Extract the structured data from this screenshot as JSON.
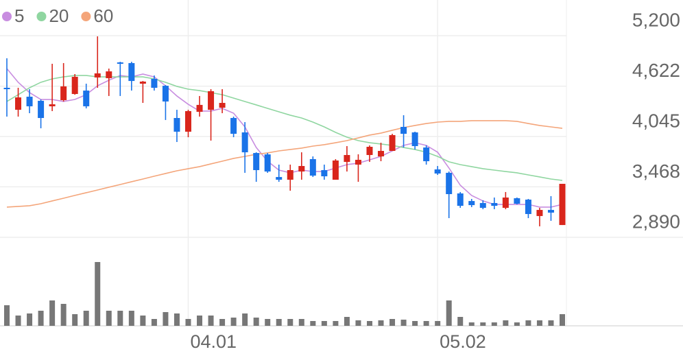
{
  "chart_data": {
    "type": "candlestick",
    "categories": [
      null,
      null,
      null,
      null,
      null,
      null,
      null,
      null,
      null,
      null,
      null,
      null,
      null,
      null,
      null,
      null,
      "04.01",
      null,
      null,
      null,
      null,
      null,
      null,
      null,
      null,
      null,
      null,
      null,
      null,
      null,
      null,
      null,
      null,
      null,
      null,
      null,
      null,
      null,
      "05.02",
      null,
      null,
      null,
      null,
      null,
      null,
      null,
      null,
      null,
      null,
      null
    ],
    "open": [
      4603,
      4351,
      4501,
      4454,
      4391,
      4461,
      4532,
      4571,
      4721,
      4713,
      4894,
      4886,
      4650,
      4705,
      4626,
      4257,
      4100,
      4328,
      4351,
      4375,
      4257,
      4092,
      3856,
      3840,
      3581,
      3550,
      3644,
      3786,
      3660,
      3550,
      3754,
      3723,
      3833,
      3817,
      3880,
      4155,
      4092,
      3919,
      3668,
      3629,
      3393,
      3306,
      3283,
      3283,
      3228,
      3338,
      3322,
      3134,
      3204,
      3031
    ],
    "high": [
      4941,
      4603,
      4587,
      4469,
      4878,
      4886,
      4760,
      4650,
      5192,
      4823,
      4901,
      4901,
      4681,
      4744,
      4634,
      4351,
      4351,
      4509,
      4587,
      4587,
      4273,
      4210,
      3864,
      3856,
      3723,
      3723,
      3864,
      3817,
      3723,
      3786,
      3935,
      3841,
      3943,
      3974,
      4076,
      4289,
      4100,
      3943,
      3707,
      3644,
      3409,
      3330,
      3314,
      3346,
      3409,
      3346,
      3330,
      3228,
      3362,
      3503
    ],
    "low": [
      4273,
      4273,
      4312,
      4139,
      4336,
      4446,
      4524,
      4367,
      4603,
      4509,
      4509,
      4571,
      4430,
      4571,
      4234,
      3982,
      4037,
      4273,
      3998,
      4312,
      4037,
      3629,
      3526,
      3629,
      3526,
      3424,
      3550,
      3581,
      3550,
      3550,
      3644,
      3526,
      3754,
      3762,
      3880,
      3919,
      3896,
      3723,
      3605,
      3110,
      3228,
      3236,
      3212,
      3212,
      3212,
      3267,
      3110,
      3016,
      3079,
      3031
    ],
    "close": [
      4587,
      4493,
      4391,
      4257,
      4414,
      4619,
      4729,
      4391,
      4768,
      4791,
      4878,
      4681,
      4674,
      4603,
      4446,
      4100,
      4336,
      4407,
      4564,
      4430,
      4076,
      3864,
      3660,
      3644,
      3550,
      3660,
      3707,
      3597,
      3589,
      3770,
      3833,
      3778,
      3927,
      3880,
      4061,
      4076,
      3935,
      3762,
      3621,
      3385,
      3251,
      3259,
      3228,
      3251,
      3346,
      3275,
      3157,
      3204,
      3173,
      3503
    ],
    "up_color": "#d9261c",
    "down_color": "#1a73e8",
    "series": [
      {
        "name": "5",
        "color": "#c88de0",
        "values": [
          4823,
          4666,
          4548,
          4469,
          4469,
          4446,
          4469,
          4524,
          4626,
          4689,
          4744,
          4728,
          4760,
          4728,
          4626,
          4509,
          4414,
          4336,
          4336,
          4367,
          4312,
          4155,
          3919,
          3762,
          3660,
          3629,
          3660,
          3644,
          3644,
          3684,
          3723,
          3739,
          3778,
          3817,
          3880,
          3943,
          3974,
          3943,
          3865,
          3684,
          3487,
          3370,
          3307,
          3267,
          3267,
          3267,
          3267,
          3236,
          3236,
          3267
        ]
      },
      {
        "name": "20",
        "color": "#8fd6a0",
        "values": [
          4446,
          4524,
          4603,
          4666,
          4705,
          4728,
          4744,
          4744,
          4728,
          4728,
          4728,
          4728,
          4728,
          4705,
          4666,
          4619,
          4587,
          4571,
          4548,
          4524,
          4485,
          4446,
          4407,
          4367,
          4328,
          4289,
          4257,
          4210,
          4155,
          4092,
          4037,
          3998,
          3974,
          3959,
          3943,
          3919,
          3896,
          3865,
          3817,
          3755,
          3723,
          3700,
          3676,
          3660,
          3644,
          3629,
          3605,
          3582,
          3558,
          3542
        ]
      },
      {
        "name": "60",
        "color": "#f4a57a",
        "values": [
          3236,
          3244,
          3252,
          3275,
          3307,
          3338,
          3370,
          3401,
          3432,
          3464,
          3495,
          3527,
          3558,
          3590,
          3621,
          3652,
          3676,
          3700,
          3731,
          3762,
          3794,
          3817,
          3841,
          3857,
          3880,
          3896,
          3912,
          3935,
          3951,
          3974,
          3998,
          4029,
          4061,
          4084,
          4116,
          4147,
          4171,
          4194,
          4210,
          4218,
          4218,
          4226,
          4226,
          4226,
          4226,
          4218,
          4194,
          4171,
          4155,
          4139
        ]
      }
    ],
    "ylim": [
      2890,
      5200
    ],
    "yticks": [
      {
        "value": 5200,
        "label": "5,200"
      },
      {
        "value": 4622,
        "label": "4,622"
      },
      {
        "value": 4045,
        "label": "4,045"
      },
      {
        "value": 3468,
        "label": "3,468"
      },
      {
        "value": 2890,
        "label": "2,890"
      }
    ],
    "volume": [
      30,
      15,
      18,
      22,
      37,
      32,
      17,
      22,
      93,
      22,
      22,
      22,
      15,
      10,
      20,
      18,
      10,
      15,
      15,
      10,
      12,
      18,
      12,
      10,
      10,
      10,
      10,
      7,
      7,
      7,
      13,
      8,
      7,
      8,
      10,
      9,
      7,
      7,
      7,
      37,
      13,
      5,
      5,
      5,
      8,
      5,
      8,
      8,
      8,
      17
    ],
    "volume_color": "#777777",
    "volume_ylim": [
      0,
      100
    ],
    "grid": true
  }
}
